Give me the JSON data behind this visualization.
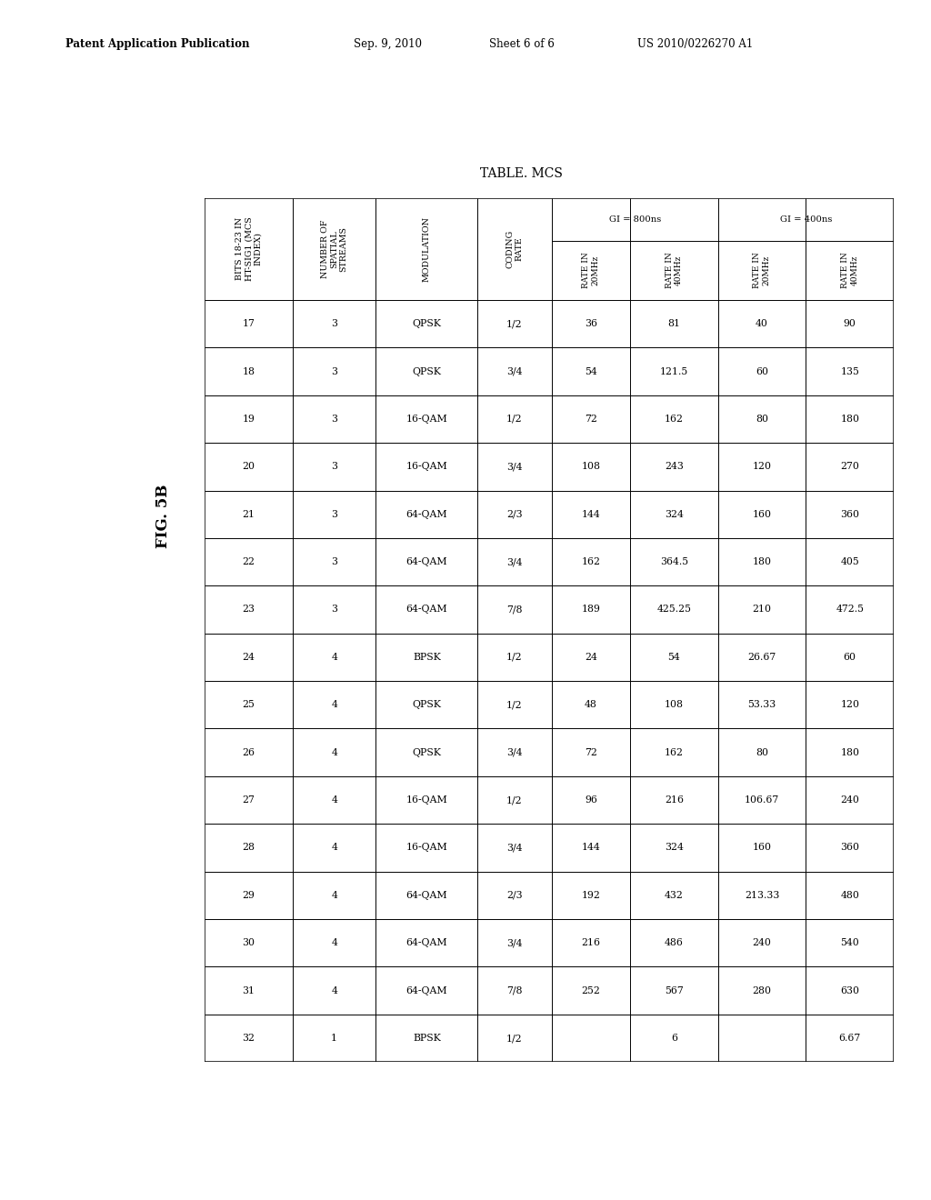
{
  "title": "TABLE. MCS",
  "fig_label": "FIG. 5B",
  "rows": [
    [
      "17",
      "3",
      "QPSK",
      "1/2",
      "36",
      "81",
      "40",
      "90"
    ],
    [
      "18",
      "3",
      "QPSK",
      "3/4",
      "54",
      "121.5",
      "60",
      "135"
    ],
    [
      "19",
      "3",
      "16-QAM",
      "1/2",
      "72",
      "162",
      "80",
      "180"
    ],
    [
      "20",
      "3",
      "16-QAM",
      "3/4",
      "108",
      "243",
      "120",
      "270"
    ],
    [
      "21",
      "3",
      "64-QAM",
      "2/3",
      "144",
      "324",
      "160",
      "360"
    ],
    [
      "22",
      "3",
      "64-QAM",
      "3/4",
      "162",
      "364.5",
      "180",
      "405"
    ],
    [
      "23",
      "3",
      "64-QAM",
      "7/8",
      "189",
      "425.25",
      "210",
      "472.5"
    ],
    [
      "24",
      "4",
      "BPSK",
      "1/2",
      "24",
      "54",
      "26.67",
      "60"
    ],
    [
      "25",
      "4",
      "QPSK",
      "1/2",
      "48",
      "108",
      "53.33",
      "120"
    ],
    [
      "26",
      "4",
      "QPSK",
      "3/4",
      "72",
      "162",
      "80",
      "180"
    ],
    [
      "27",
      "4",
      "16-QAM",
      "1/2",
      "96",
      "216",
      "106.67",
      "240"
    ],
    [
      "28",
      "4",
      "16-QAM",
      "3/4",
      "144",
      "324",
      "160",
      "360"
    ],
    [
      "29",
      "4",
      "64-QAM",
      "2/3",
      "192",
      "432",
      "213.33",
      "480"
    ],
    [
      "30",
      "4",
      "64-QAM",
      "3/4",
      "216",
      "486",
      "240",
      "540"
    ],
    [
      "31",
      "4",
      "64-QAM",
      "7/8",
      "252",
      "567",
      "280",
      "630"
    ],
    [
      "32",
      "1",
      "BPSK",
      "1/2",
      "",
      "6",
      "",
      "6.67"
    ]
  ],
  "col0_header": "BITS 18-23 IN\nHT-SIG1 (MCS\nINDEX)",
  "col1_header": "NUMBER OF\nSPATIAL\nSTREAMS",
  "col2_header": "MODULATION",
  "col3_header": "CODING\nRATE",
  "gi800_header": "GI = 800ns",
  "gi400_header": "GI = 400ns",
  "gi800_sub": [
    "RATE IN\n20MHz",
    "RATE IN\n40MHz"
  ],
  "gi400_sub": [
    "RATE IN\n20MHz",
    "RATE IN\n40MHz"
  ],
  "bg_color": "#ffffff",
  "line_color": "#000000",
  "text_color": "#000000",
  "patent_left": "Patent Application Publication",
  "patent_date": "Sep. 9, 2010",
  "patent_sheet": "Sheet 6 of 6",
  "patent_number": "US 2010/0226270 A1"
}
